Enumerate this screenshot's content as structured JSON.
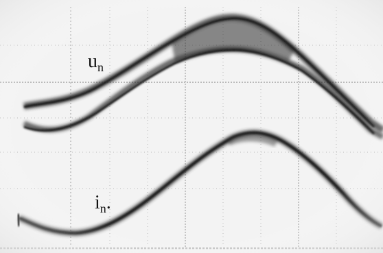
{
  "traces": [
    {
      "name": "u",
      "subscript": "n",
      "suffix": ""
    },
    {
      "name": "i",
      "subscript": "n",
      "suffix": "."
    }
  ],
  "colors": {
    "background": "#f3f3f3",
    "grid": "#8a8a8a",
    "trace": "#1a1a1a"
  }
}
